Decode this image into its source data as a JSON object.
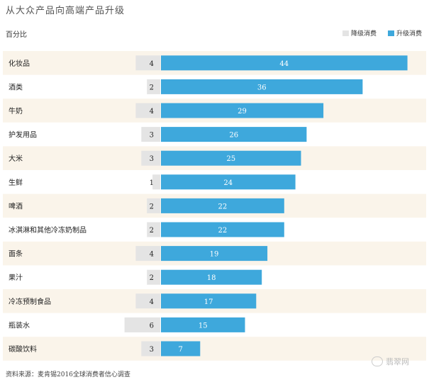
{
  "header": {
    "title": "从大众产品向高端产品升级",
    "unit": "百分比"
  },
  "legend": {
    "downgrade": "降级消费",
    "upgrade": "升级消费"
  },
  "colors": {
    "upgrade": "#3ea8dc",
    "downgrade": "#e4e4e4",
    "stripe": "#faf4ea"
  },
  "chart_data": {
    "type": "bar",
    "orientation": "diverging-horizontal",
    "categories": [
      "化妆品",
      "酒类",
      "牛奶",
      "护发用品",
      "大米",
      "生鲜",
      "啤酒",
      "冰淇淋和其他冷冻奶制品",
      "面条",
      "果汁",
      "冷冻预制食品",
      "瓶装水",
      "碳酸饮料"
    ],
    "series": [
      {
        "name": "降级消费",
        "values": [
          4,
          2,
          4,
          3,
          3,
          1,
          2,
          2,
          4,
          2,
          4,
          6,
          3
        ]
      },
      {
        "name": "升级消费",
        "values": [
          44,
          36,
          29,
          26,
          25,
          24,
          22,
          22,
          19,
          18,
          17,
          15,
          7
        ]
      }
    ],
    "title": "从大众产品向高端产品升级",
    "ylabel": "百分比",
    "legend_position": "top-right"
  },
  "footer": {
    "source": "资料来源：麦肯锡2016全球消费者信心调查",
    "watermark": "翡翠网"
  }
}
